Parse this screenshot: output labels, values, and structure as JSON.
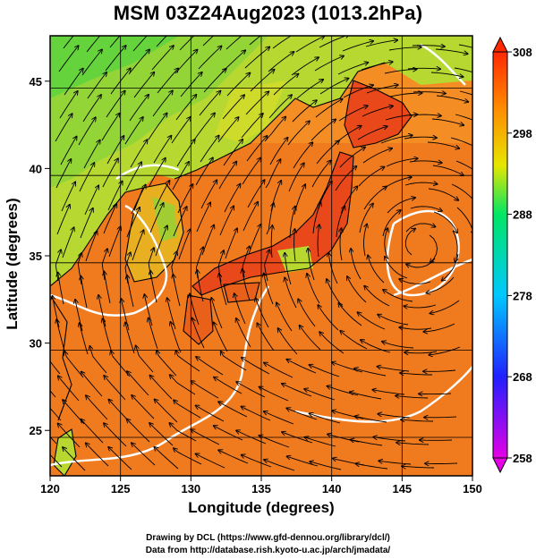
{
  "title": "MSM 03Z24Aug2023 (1013.2hPa)",
  "axes": {
    "xlabel": "Longitude (degrees)",
    "ylabel": "Latitude  (degrees)",
    "x_ticks": [
      "120",
      "125",
      "130",
      "135",
      "140",
      "145",
      "150"
    ],
    "y_ticks": [
      "25",
      "30",
      "35",
      "40",
      "45"
    ],
    "x_range": [
      120,
      150
    ],
    "y_range": [
      22.4,
      47.6
    ]
  },
  "colorbar": {
    "ticks": [
      "258",
      "268",
      "278",
      "288",
      "298",
      "308"
    ],
    "range": [
      258,
      308
    ],
    "colors": [
      "#e600e6",
      "#2020ff",
      "#00c8ff",
      "#00e664",
      "#e6e600",
      "#ff8c00",
      "#ff2800"
    ]
  },
  "credits": {
    "line1": "Drawing by DCL (https://www.gfd-dennou.org/library/dcl/)",
    "line2": "Data from http://database.rish.kyoto-u.ac.jp/arch/jmadata/"
  },
  "colors": {
    "ocean": "#f07a1e",
    "warm_land": "#e8501a",
    "cool_land": "#9acd32",
    "cold_land": "#5ad23c"
  }
}
